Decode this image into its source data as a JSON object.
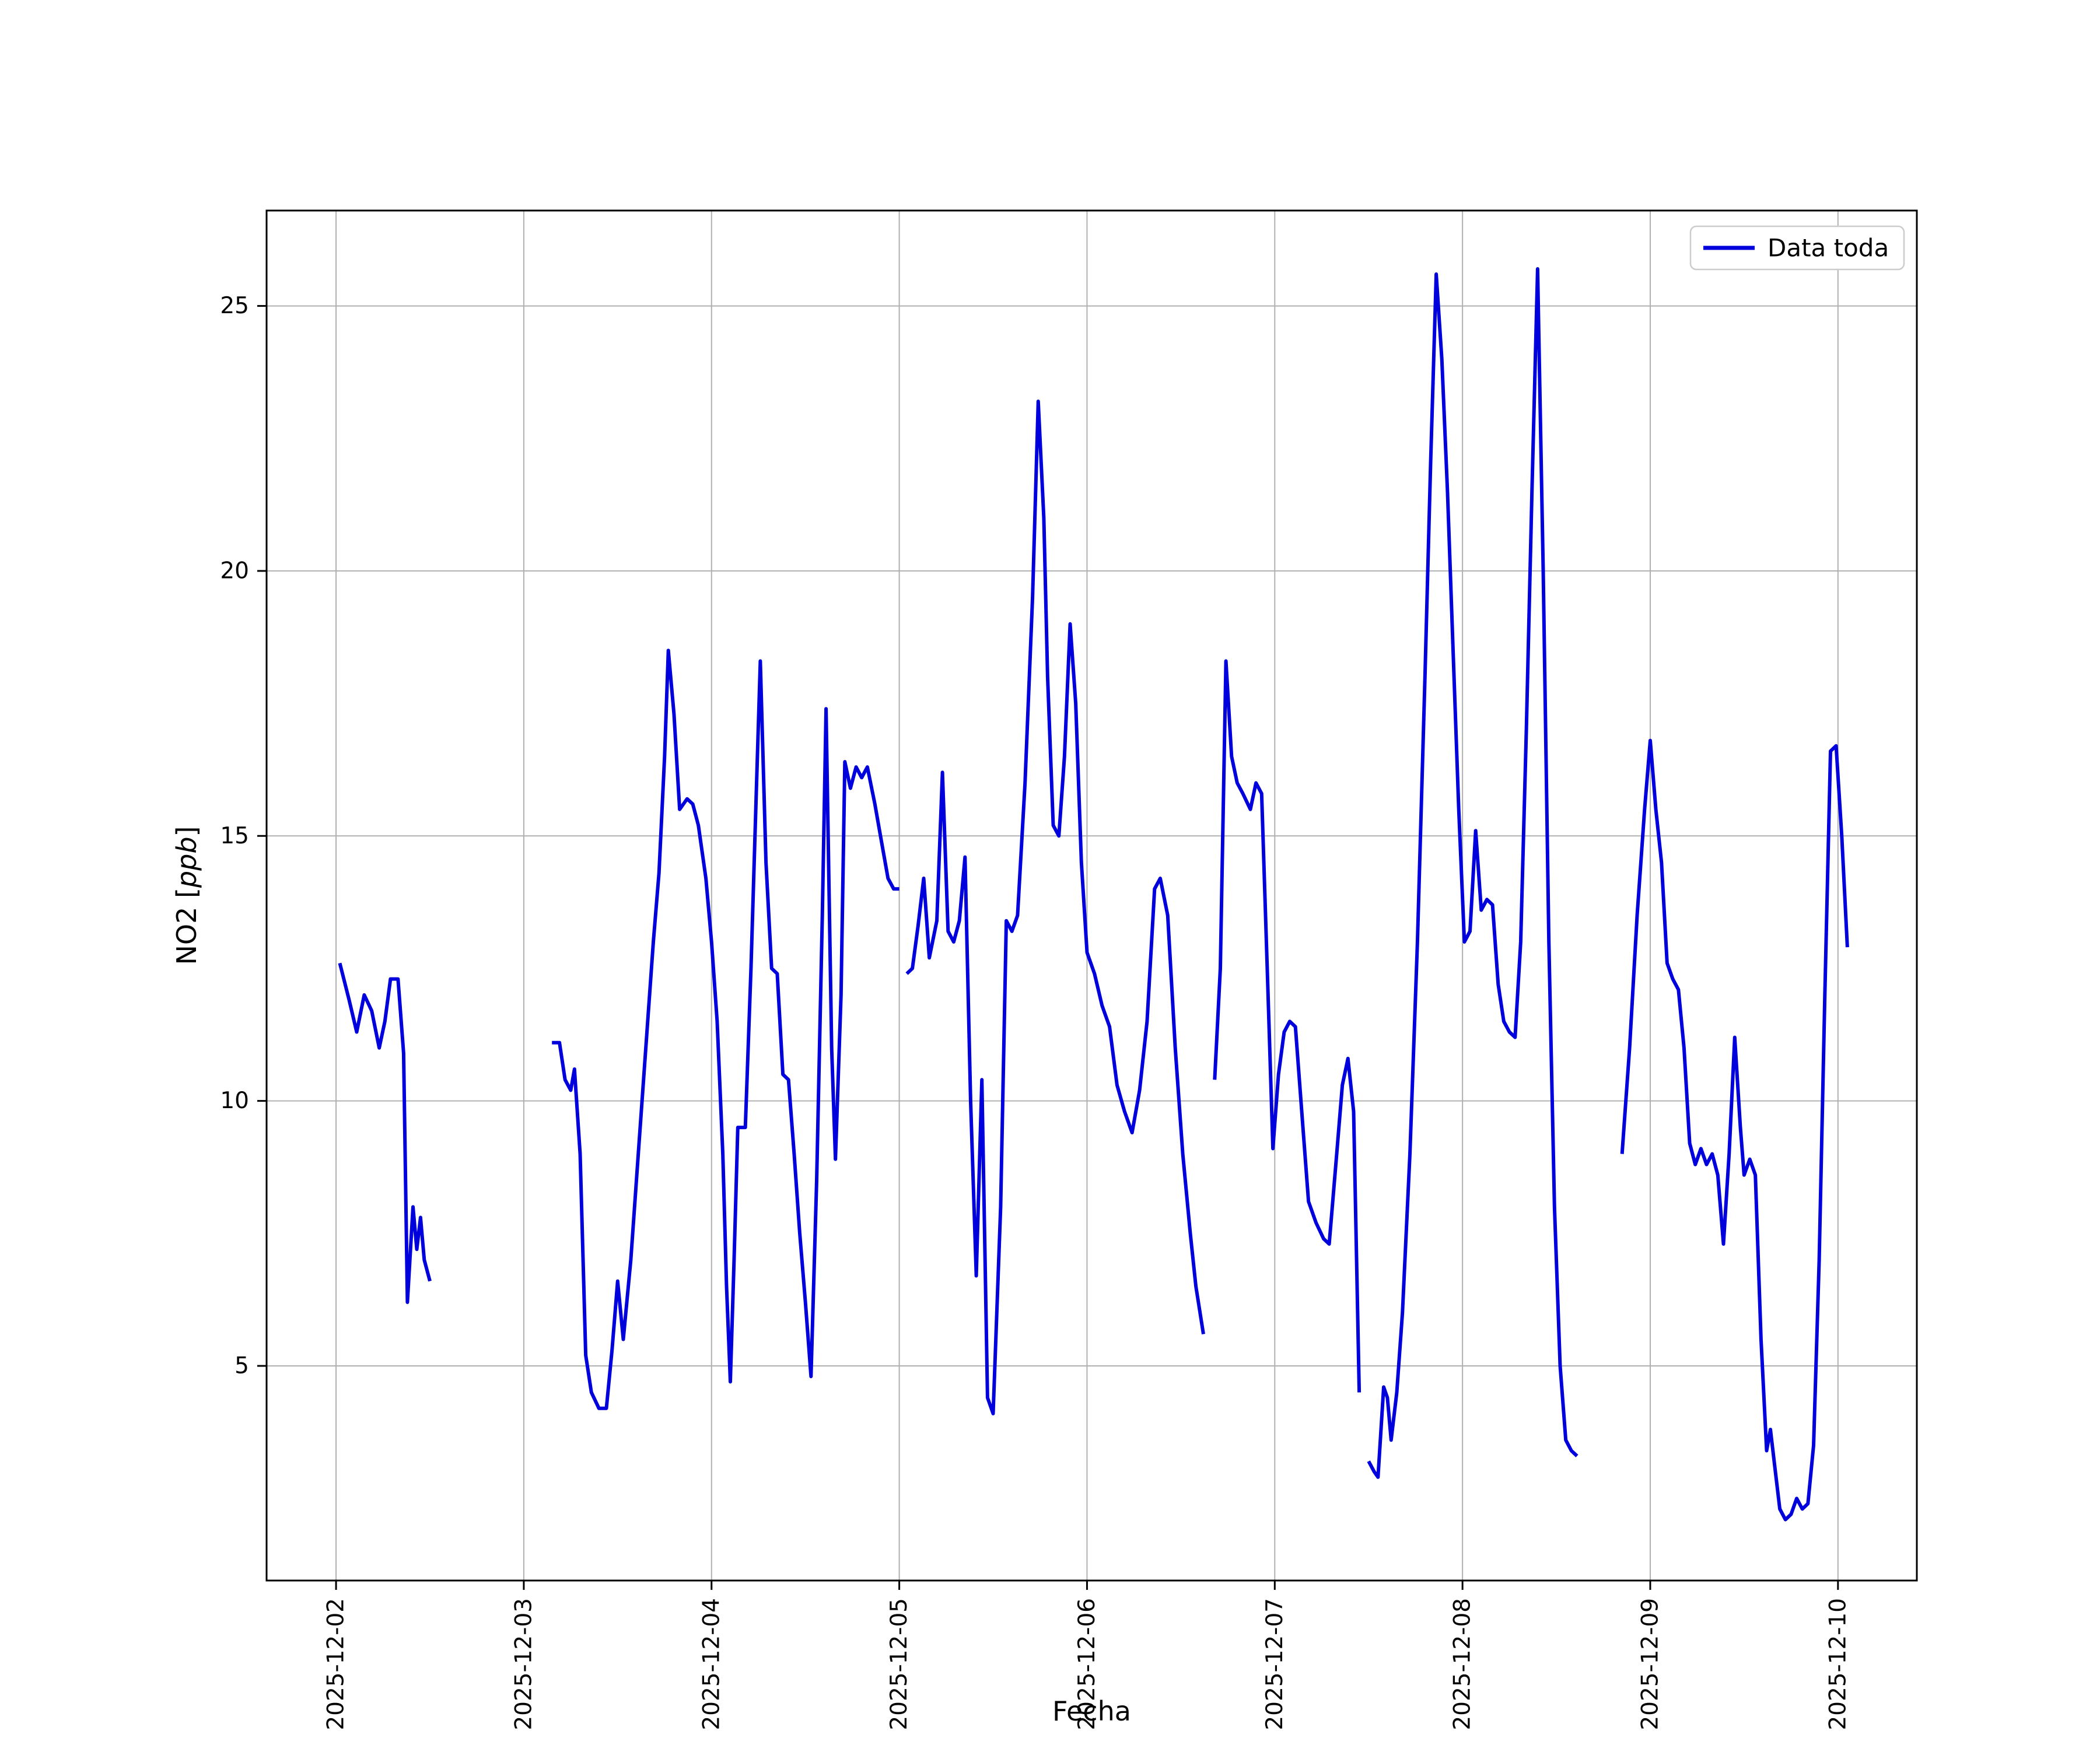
{
  "figure": {
    "background": "#ffffff"
  },
  "chart_data": {
    "type": "line",
    "title": "",
    "xlabel": "Fecha",
    "ylabel_prefix": "NO2 [",
    "ylabel_math": "ppb",
    "ylabel_suffix": "]",
    "legend": [
      {
        "label": "Data toda",
        "color": "#0000dd"
      }
    ],
    "legend_position": "upper right",
    "grid": true,
    "grid_color": "#b0b0b0",
    "axis_color": "#000000",
    "line_color": "#0000dd",
    "x_tick_labels": [
      "2025-12-02",
      "2025-12-03",
      "2025-12-04",
      "2025-12-05",
      "2025-12-06",
      "2025-12-07",
      "2025-12-08",
      "2025-12-09",
      "2025-12-10"
    ],
    "x_tick_days": [
      0,
      1,
      2,
      3,
      4,
      5,
      6,
      7,
      8
    ],
    "y_ticks": [
      5,
      10,
      15,
      20,
      25
    ],
    "xlim": [
      -0.37,
      8.42
    ],
    "ylim": [
      0.95,
      26.8
    ],
    "x_unit": "days since 2025-12-02",
    "points": [
      [
        0.02,
        12.6
      ],
      [
        0.07,
        11.9
      ],
      [
        0.11,
        11.3
      ],
      [
        0.15,
        12.0
      ],
      [
        0.19,
        11.7
      ],
      [
        0.23,
        11.0
      ],
      [
        0.26,
        11.5
      ],
      [
        0.29,
        12.3
      ],
      [
        0.33,
        12.3
      ],
      [
        0.36,
        10.9
      ],
      [
        0.38,
        6.2
      ],
      [
        0.41,
        8.0
      ],
      [
        0.43,
        7.2
      ],
      [
        0.45,
        7.8
      ],
      [
        0.47,
        7.0
      ],
      [
        0.5,
        6.6
      ],
      null,
      [
        1.15,
        11.1
      ],
      [
        1.19,
        11.1
      ],
      [
        1.22,
        10.4
      ],
      [
        1.25,
        10.2
      ],
      [
        1.27,
        10.6
      ],
      [
        1.3,
        9.0
      ],
      [
        1.33,
        5.2
      ],
      [
        1.36,
        4.5
      ],
      [
        1.4,
        4.2
      ],
      [
        1.44,
        4.2
      ],
      [
        1.47,
        5.3
      ],
      [
        1.5,
        6.6
      ],
      [
        1.53,
        5.5
      ],
      [
        1.57,
        7.0
      ],
      [
        1.61,
        9.0
      ],
      [
        1.65,
        11.0
      ],
      [
        1.69,
        13.0
      ],
      [
        1.72,
        14.3
      ],
      [
        1.75,
        16.5
      ],
      [
        1.77,
        18.5
      ],
      [
        1.8,
        17.3
      ],
      [
        1.83,
        15.5
      ],
      [
        1.87,
        15.7
      ],
      [
        1.9,
        15.6
      ],
      [
        1.93,
        15.2
      ],
      [
        1.97,
        14.2
      ],
      [
        2.0,
        13.0
      ],
      [
        2.03,
        11.5
      ],
      [
        2.06,
        9.0
      ],
      [
        2.08,
        6.5
      ],
      [
        2.1,
        4.7
      ],
      [
        2.12,
        7.0
      ],
      [
        2.14,
        9.5
      ],
      [
        2.18,
        9.5
      ],
      [
        2.21,
        12.5
      ],
      [
        2.24,
        16.0
      ],
      [
        2.26,
        18.3
      ],
      [
        2.29,
        14.5
      ],
      [
        2.32,
        12.5
      ],
      [
        2.35,
        12.4
      ],
      [
        2.38,
        10.5
      ],
      [
        2.41,
        10.4
      ],
      [
        2.44,
        9.0
      ],
      [
        2.47,
        7.5
      ],
      [
        2.5,
        6.2
      ],
      [
        2.53,
        4.8
      ],
      [
        2.56,
        8.5
      ],
      [
        2.59,
        13.5
      ],
      [
        2.61,
        17.4
      ],
      [
        2.64,
        11.0
      ],
      [
        2.66,
        8.9
      ],
      [
        2.69,
        12.0
      ],
      [
        2.71,
        16.4
      ],
      [
        2.74,
        15.9
      ],
      [
        2.77,
        16.3
      ],
      [
        2.8,
        16.1
      ],
      [
        2.83,
        16.3
      ],
      [
        2.87,
        15.6
      ],
      [
        2.9,
        15.0
      ],
      [
        2.94,
        14.2
      ],
      [
        2.97,
        14.0
      ],
      [
        3.0,
        14.0
      ],
      null,
      [
        3.04,
        12.4
      ],
      [
        3.07,
        12.5
      ],
      [
        3.1,
        13.3
      ],
      [
        3.13,
        14.2
      ],
      [
        3.16,
        12.7
      ],
      [
        3.2,
        13.4
      ],
      [
        3.23,
        16.2
      ],
      [
        3.26,
        13.2
      ],
      [
        3.29,
        13.0
      ],
      [
        3.32,
        13.4
      ],
      [
        3.35,
        14.6
      ],
      [
        3.38,
        10.0
      ],
      [
        3.41,
        6.7
      ],
      [
        3.44,
        10.4
      ],
      [
        3.47,
        4.4
      ],
      [
        3.5,
        4.1
      ],
      [
        3.54,
        8.0
      ],
      [
        3.57,
        13.4
      ],
      [
        3.6,
        13.2
      ],
      [
        3.63,
        13.5
      ],
      [
        3.67,
        16.0
      ],
      [
        3.71,
        19.5
      ],
      [
        3.74,
        23.2
      ],
      [
        3.77,
        21.0
      ],
      [
        3.79,
        18.0
      ],
      [
        3.82,
        15.2
      ],
      [
        3.85,
        15.0
      ],
      [
        3.88,
        16.5
      ],
      [
        3.91,
        19.0
      ],
      [
        3.94,
        17.5
      ],
      [
        3.97,
        14.5
      ],
      [
        4.0,
        12.8
      ],
      [
        4.04,
        12.4
      ],
      [
        4.08,
        11.8
      ],
      [
        4.12,
        11.4
      ],
      [
        4.16,
        10.3
      ],
      [
        4.2,
        9.8
      ],
      [
        4.24,
        9.4
      ],
      [
        4.28,
        10.2
      ],
      [
        4.32,
        11.5
      ],
      [
        4.36,
        14.0
      ],
      [
        4.39,
        14.2
      ],
      [
        4.43,
        13.5
      ],
      [
        4.47,
        11.0
      ],
      [
        4.51,
        9.0
      ],
      [
        4.55,
        7.5
      ],
      [
        4.58,
        6.5
      ],
      [
        4.62,
        5.6
      ],
      null,
      [
        4.68,
        10.4
      ],
      [
        4.71,
        12.5
      ],
      [
        4.74,
        18.3
      ],
      [
        4.77,
        16.5
      ],
      [
        4.8,
        16.0
      ],
      [
        4.83,
        15.8
      ],
      [
        4.87,
        15.5
      ],
      [
        4.9,
        16.0
      ],
      [
        4.93,
        15.8
      ],
      [
        4.96,
        12.5
      ],
      [
        4.99,
        9.1
      ],
      [
        5.02,
        10.5
      ],
      [
        5.05,
        11.3
      ],
      [
        5.08,
        11.5
      ],
      [
        5.11,
        11.4
      ],
      [
        5.15,
        9.5
      ],
      [
        5.18,
        8.1
      ],
      [
        5.22,
        7.7
      ],
      [
        5.26,
        7.4
      ],
      [
        5.29,
        7.3
      ],
      [
        5.33,
        9.0
      ],
      [
        5.36,
        10.3
      ],
      [
        5.39,
        10.8
      ],
      [
        5.42,
        9.8
      ],
      [
        5.45,
        4.5
      ],
      null,
      [
        5.5,
        3.2
      ],
      [
        5.53,
        3.0
      ],
      [
        5.55,
        2.9
      ],
      [
        5.58,
        4.6
      ],
      [
        5.6,
        4.4
      ],
      [
        5.62,
        3.6
      ],
      [
        5.65,
        4.5
      ],
      [
        5.68,
        6.0
      ],
      [
        5.72,
        9.0
      ],
      [
        5.76,
        13.0
      ],
      [
        5.8,
        18.0
      ],
      [
        5.83,
        22.0
      ],
      [
        5.86,
        25.6
      ],
      [
        5.89,
        24.0
      ],
      [
        5.92,
        21.5
      ],
      [
        5.95,
        18.5
      ],
      [
        5.98,
        15.5
      ],
      [
        6.01,
        13.0
      ],
      [
        6.04,
        13.2
      ],
      [
        6.07,
        15.1
      ],
      [
        6.1,
        13.6
      ],
      [
        6.13,
        13.8
      ],
      [
        6.16,
        13.7
      ],
      [
        6.19,
        12.2
      ],
      [
        6.22,
        11.5
      ],
      [
        6.25,
        11.3
      ],
      [
        6.28,
        11.2
      ],
      [
        6.31,
        13.0
      ],
      [
        6.34,
        17.0
      ],
      [
        6.37,
        21.5
      ],
      [
        6.4,
        25.7
      ],
      [
        6.43,
        20.0
      ],
      [
        6.46,
        13.0
      ],
      [
        6.49,
        8.0
      ],
      [
        6.52,
        5.0
      ],
      [
        6.55,
        3.6
      ],
      [
        6.58,
        3.4
      ],
      [
        6.61,
        3.3
      ],
      null,
      [
        6.85,
        9.0
      ],
      [
        6.89,
        11.0
      ],
      [
        6.93,
        13.5
      ],
      [
        6.97,
        15.5
      ],
      [
        7.0,
        16.8
      ],
      [
        7.03,
        15.5
      ],
      [
        7.06,
        14.5
      ],
      [
        7.09,
        12.6
      ],
      [
        7.12,
        12.3
      ],
      [
        7.15,
        12.1
      ],
      [
        7.18,
        11.0
      ],
      [
        7.21,
        9.2
      ],
      [
        7.24,
        8.8
      ],
      [
        7.27,
        9.1
      ],
      [
        7.3,
        8.8
      ],
      [
        7.33,
        9.0
      ],
      [
        7.36,
        8.6
      ],
      [
        7.39,
        7.3
      ],
      [
        7.42,
        9.0
      ],
      [
        7.45,
        11.2
      ],
      [
        7.48,
        9.5
      ],
      [
        7.5,
        8.6
      ],
      [
        7.53,
        8.9
      ],
      [
        7.56,
        8.6
      ],
      [
        7.59,
        5.5
      ],
      [
        7.62,
        3.4
      ],
      [
        7.64,
        3.8
      ],
      [
        7.66,
        3.2
      ],
      [
        7.69,
        2.3
      ],
      [
        7.72,
        2.1
      ],
      [
        7.75,
        2.2
      ],
      [
        7.78,
        2.5
      ],
      [
        7.81,
        2.3
      ],
      [
        7.84,
        2.4
      ],
      [
        7.87,
        3.5
      ],
      [
        7.9,
        7.0
      ],
      [
        7.93,
        12.0
      ],
      [
        7.96,
        16.6
      ],
      [
        7.99,
        16.7
      ],
      [
        8.02,
        15.0
      ],
      [
        8.05,
        12.9
      ]
    ]
  }
}
